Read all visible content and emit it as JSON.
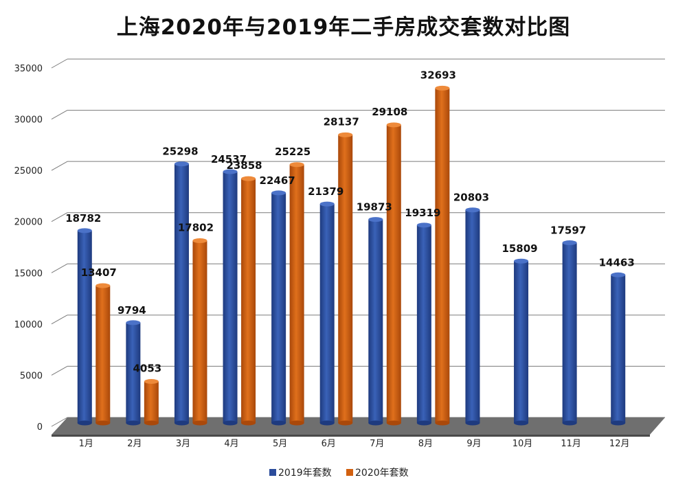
{
  "chart_data": {
    "type": "bar",
    "title": "上海2020年与2019年二手房成交套数对比图",
    "categories": [
      "1月",
      "2月",
      "3月",
      "4月",
      "5月",
      "6月",
      "7月",
      "8月",
      "9月",
      "10月",
      "11月",
      "12月"
    ],
    "series": [
      {
        "name": "2019年套数",
        "color": "#2B4C9B",
        "values": [
          18782,
          9794,
          25298,
          24537,
          22467,
          21379,
          19873,
          19319,
          20803,
          15809,
          17597,
          14463
        ]
      },
      {
        "name": "2020年套数",
        "color": "#D2600F",
        "values": [
          13407,
          4053,
          17802,
          23858,
          25225,
          28137,
          29108,
          32693,
          null,
          null,
          null,
          null
        ]
      }
    ],
    "yticks": [
      "0",
      "5000",
      "10000",
      "15000",
      "20000",
      "25000",
      "30000",
      "35000"
    ],
    "ylim": [
      0,
      35000
    ],
    "grid": true,
    "legend_position": "bottom",
    "xlabel": "",
    "ylabel": ""
  }
}
